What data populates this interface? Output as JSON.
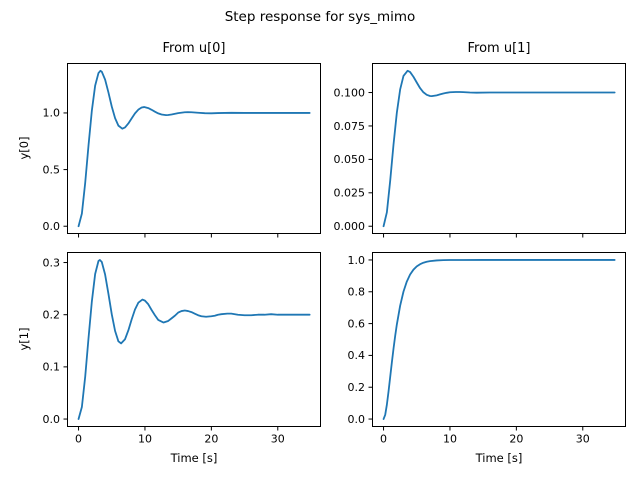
{
  "figure": {
    "suptitle": "Step response for sys_mimo",
    "line_color": "#1f77b4",
    "background_color": "#ffffff",
    "spine_color": "#000000",
    "text_color": "#000000"
  },
  "chart_data": [
    {
      "type": "line",
      "title": "From u[0]",
      "ylabel": "y[0]",
      "xlabel": "",
      "grid": false,
      "legend": null,
      "xlim": [
        -1.7385,
        36.5085
      ],
      "ylim": [
        -0.0686,
        1.4409
      ],
      "xticks": [
        0,
        10,
        20,
        30
      ],
      "xticklabels": [],
      "yticks": [
        0.0,
        0.5,
        1.0
      ],
      "yticklabels": [
        "0.0",
        "0.5",
        "1.0"
      ],
      "x": [
        0,
        0.5,
        1,
        1.5,
        2,
        2.5,
        3,
        3.29,
        3.5,
        4,
        4.5,
        5,
        5.5,
        6,
        6.59,
        7,
        7.5,
        8,
        8.5,
        9,
        9.5,
        9.88,
        10.5,
        11,
        11.5,
        12,
        12.5,
        13.17,
        13.5,
        14,
        15,
        16,
        16.46,
        17,
        18,
        19,
        20,
        21,
        22,
        23,
        25,
        27,
        29,
        31,
        33,
        34.8
      ],
      "y": [
        0,
        0.111,
        0.382,
        0.713,
        1.019,
        1.241,
        1.352,
        1.372,
        1.364,
        1.294,
        1.181,
        1.057,
        0.954,
        0.888,
        0.861,
        0.872,
        0.907,
        0.952,
        0.996,
        1.029,
        1.048,
        1.052,
        1.043,
        1.028,
        1.011,
        0.996,
        0.986,
        0.981,
        0.982,
        0.986,
        0.998,
        1.006,
        1.007,
        1.006,
        1.002,
        0.998,
        0.997,
        0.999,
        1.0,
        1.001,
        1.0,
        1.0,
        1.0,
        1.0,
        1.0,
        1.0
      ]
    },
    {
      "type": "line",
      "title": "From u[1]",
      "ylabel": "",
      "xlabel": "",
      "grid": false,
      "legend": null,
      "xlim": [
        -1.7385,
        36.5085
      ],
      "ylim": [
        -0.00581,
        0.12209
      ],
      "xticks": [
        0,
        10,
        20,
        30
      ],
      "xticklabels": [],
      "yticks": [
        0.0,
        0.025,
        0.05,
        0.075,
        0.1
      ],
      "yticklabels": [
        "0.000",
        "0.025",
        "0.050",
        "0.075",
        "0.100"
      ],
      "x": [
        0,
        0.5,
        1,
        1.5,
        2,
        2.5,
        3,
        3.63,
        4,
        4.5,
        5,
        5.5,
        6,
        6.5,
        7,
        7.26,
        8,
        8.5,
        9,
        9.5,
        10,
        10.88,
        11.5,
        12,
        13,
        14,
        16,
        18,
        20,
        24,
        28,
        32,
        34.8
      ],
      "y": [
        0,
        0.0104,
        0.034,
        0.0611,
        0.0849,
        0.1023,
        0.1124,
        0.1163,
        0.1153,
        0.1118,
        0.1075,
        0.1033,
        0.1002,
        0.0983,
        0.0974,
        0.0973,
        0.0979,
        0.0986,
        0.0993,
        0.0998,
        0.1002,
        0.1004,
        0.1004,
        0.1003,
        0.1,
        0.0999,
        0.1,
        0.1,
        0.1,
        0.1,
        0.1,
        0.1,
        0.1
      ]
    },
    {
      "type": "line",
      "title": "",
      "ylabel": "y[1]",
      "xlabel": "Time [s]",
      "grid": false,
      "legend": null,
      "xlim": [
        -1.7385,
        36.5085
      ],
      "ylim": [
        -0.01525,
        0.3202
      ],
      "xticks": [
        0,
        10,
        20,
        30
      ],
      "xticklabels": [
        "0",
        "10",
        "20",
        "30"
      ],
      "yticks": [
        0.0,
        0.1,
        0.2,
        0.3
      ],
      "yticklabels": [
        "0.0",
        "0.1",
        "0.2",
        "0.3"
      ],
      "x": [
        0,
        0.5,
        1,
        1.5,
        2,
        2.5,
        3,
        3.21,
        3.5,
        4,
        4.5,
        5,
        5.5,
        6,
        6.41,
        7,
        7.5,
        8,
        8.5,
        9,
        9.62,
        10,
        10.5,
        11,
        11.5,
        12,
        12.8,
        13.5,
        14,
        14.5,
        15,
        15.5,
        16,
        16.5,
        17,
        17.5,
        18,
        18.5,
        19.2,
        20,
        20.5,
        21,
        21.5,
        22.4,
        23,
        24,
        25,
        26,
        27,
        28,
        29,
        30,
        31,
        32,
        33,
        34,
        34.8
      ],
      "y": [
        0,
        0.023,
        0.081,
        0.155,
        0.225,
        0.278,
        0.303,
        0.305,
        0.301,
        0.277,
        0.24,
        0.201,
        0.169,
        0.149,
        0.145,
        0.153,
        0.17,
        0.191,
        0.21,
        0.223,
        0.229,
        0.227,
        0.22,
        0.209,
        0.199,
        0.19,
        0.185,
        0.188,
        0.193,
        0.198,
        0.204,
        0.207,
        0.208,
        0.207,
        0.205,
        0.202,
        0.199,
        0.197,
        0.196,
        0.197,
        0.198,
        0.2,
        0.201,
        0.202,
        0.202,
        0.2,
        0.199,
        0.199,
        0.2,
        0.2,
        0.201,
        0.2,
        0.2,
        0.2,
        0.2,
        0.2,
        0.2
      ]
    },
    {
      "type": "line",
      "title": "",
      "ylabel": "",
      "xlabel": "Time [s]",
      "grid": false,
      "legend": null,
      "xlim": [
        -1.7385,
        36.5085
      ],
      "ylim": [
        -0.05,
        1.05
      ],
      "xticks": [
        0,
        10,
        20,
        30
      ],
      "xticklabels": [
        "0",
        "10",
        "20",
        "30"
      ],
      "yticks": [
        0.0,
        0.2,
        0.4,
        0.6,
        0.8,
        1.0
      ],
      "yticklabels": [
        "0.0",
        "0.2",
        "0.4",
        "0.6",
        "0.8",
        "1.0"
      ],
      "x": [
        0,
        0.25,
        0.5,
        0.75,
        1,
        1.25,
        1.5,
        1.75,
        2,
        2.5,
        3,
        3.5,
        4,
        4.5,
        5,
        5.5,
        6,
        6.5,
        7,
        8,
        9,
        10,
        12,
        15,
        20,
        25,
        30,
        34.8
      ],
      "y": [
        0,
        0.0265,
        0.0902,
        0.1734,
        0.2642,
        0.3554,
        0.4422,
        0.522,
        0.594,
        0.7127,
        0.8009,
        0.8641,
        0.9084,
        0.9389,
        0.9596,
        0.9734,
        0.9826,
        0.9887,
        0.9927,
        0.997,
        0.9988,
        0.9995,
        0.9999,
        1,
        1,
        1,
        1,
        1
      ]
    }
  ]
}
